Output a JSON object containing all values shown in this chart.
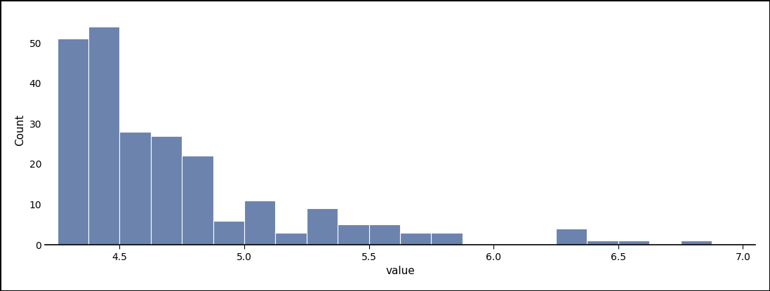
{
  "bar_left_edges": [
    4.25,
    4.375,
    4.5,
    4.625,
    4.75,
    4.875,
    5.0,
    5.125,
    5.25,
    5.375,
    5.5,
    5.625,
    5.75,
    5.875,
    6.0,
    6.125,
    6.25,
    6.375,
    6.5,
    6.625,
    6.75,
    6.875
  ],
  "bar_heights": [
    51,
    54,
    28,
    27,
    22,
    6,
    11,
    3,
    9,
    5,
    5,
    3,
    3,
    0,
    0,
    0,
    4,
    1,
    1,
    0,
    1,
    0
  ],
  "bar_width": 0.125,
  "bar_color": "#6b83ad",
  "bar_edgecolor": "white",
  "bar_linewidth": 0.8,
  "xlabel": "value",
  "ylabel": "Count",
  "xlim": [
    4.2,
    7.05
  ],
  "ylim": [
    0,
    57
  ],
  "xticks": [
    4.5,
    5.0,
    5.5,
    6.0,
    6.5,
    7.0
  ],
  "yticks": [
    0,
    10,
    20,
    30,
    40,
    50
  ],
  "xlabel_fontsize": 11,
  "ylabel_fontsize": 11,
  "tick_fontsize": 10,
  "background_color": "#ffffff"
}
